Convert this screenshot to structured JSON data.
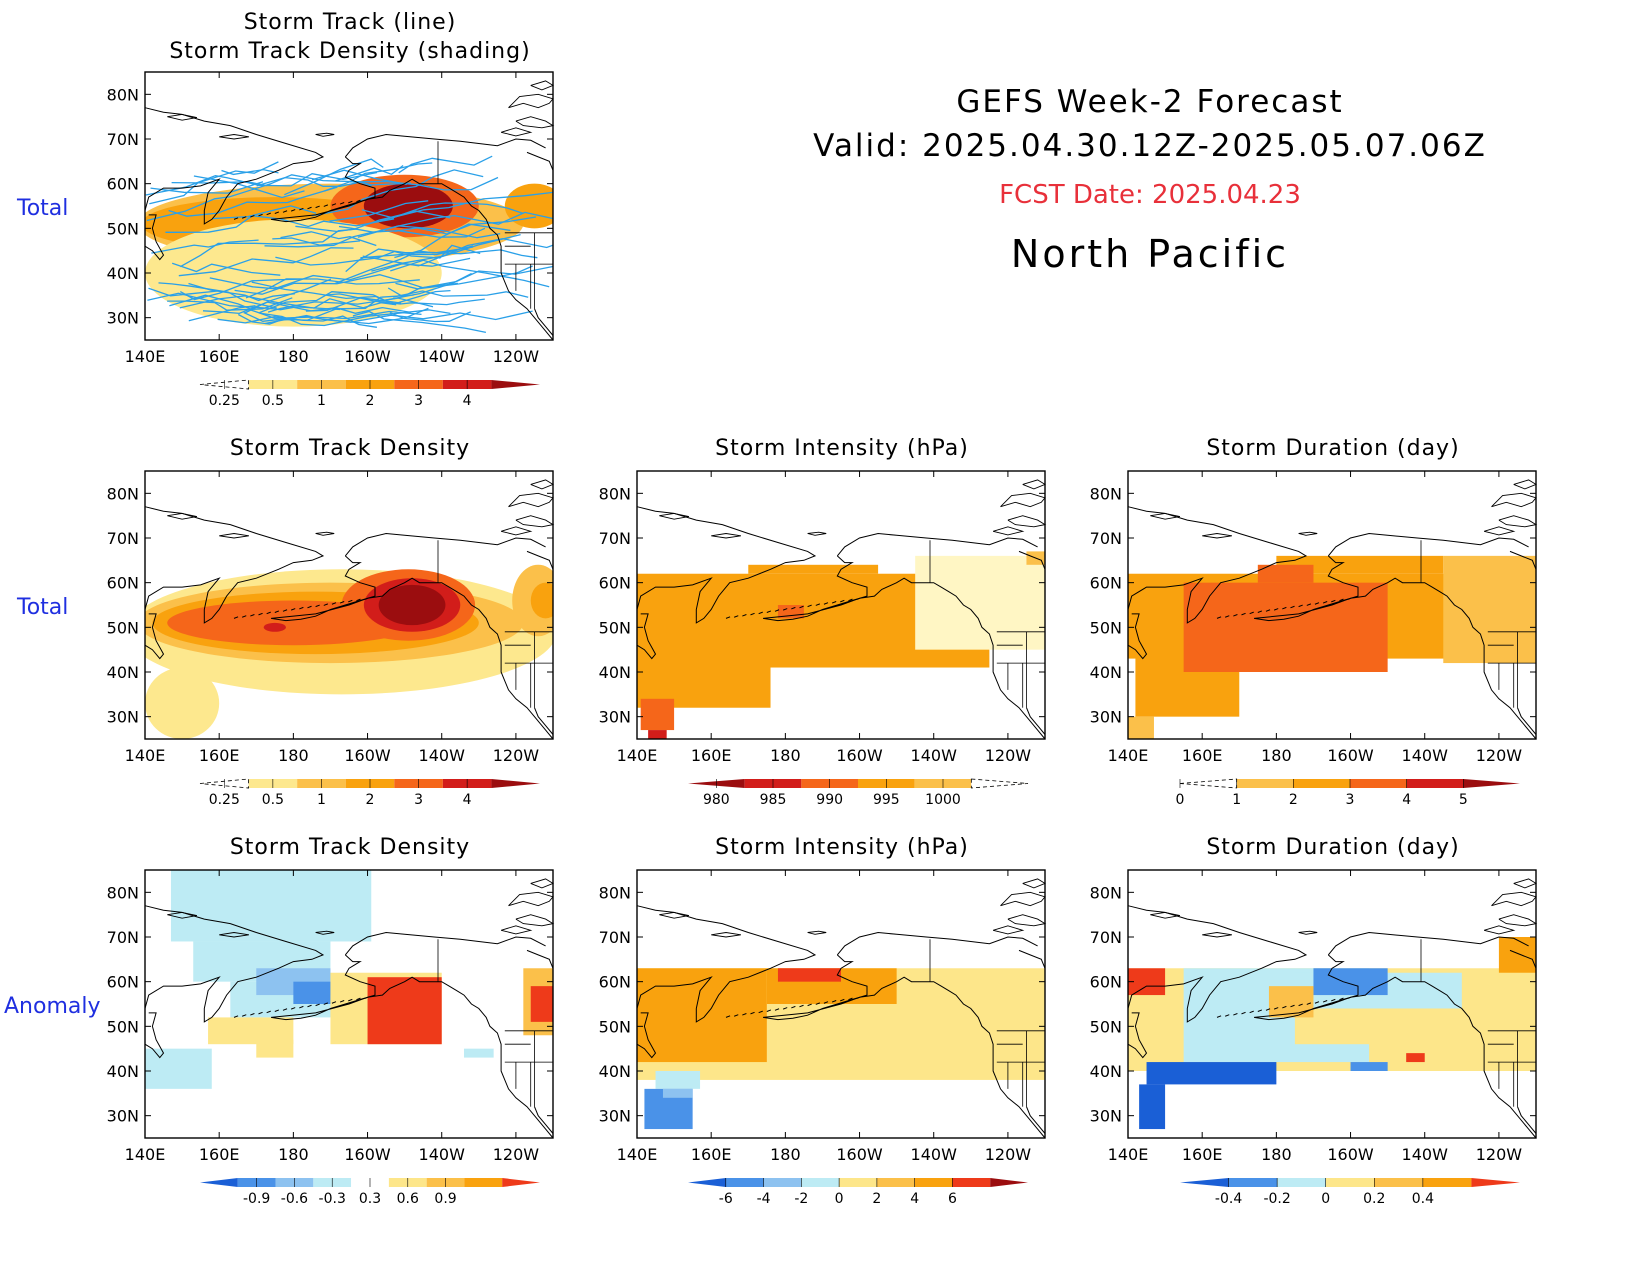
{
  "header": {
    "line1": "GEFS Week-2 Forecast",
    "line2": "Valid: 2025.04.30.12Z-2025.05.07.06Z",
    "fcst": "FCST Date: 2025.04.23",
    "region": "North Pacific",
    "fcst_color": "#e8303a"
  },
  "row_labels": {
    "top": "Total",
    "middle": "Total",
    "bottom": "Anomaly"
  },
  "lat_ticks": [
    "80N",
    "70N",
    "60N",
    "50N",
    "40N",
    "30N"
  ],
  "lon_ticks": [
    "140E",
    "160E",
    "180",
    "160W",
    "140W",
    "120W"
  ],
  "lat_range": [
    25,
    85
  ],
  "lon_range": [
    140,
    250
  ],
  "colorbars": {
    "density": {
      "labels": [
        "0.25",
        "0.5",
        "1",
        "2",
        "3",
        "4"
      ],
      "colors": [
        "#fff6c4",
        "#fde88e",
        "#fbc04a",
        "#f9a20e",
        "#f5661a",
        "#d21d1a",
        "#9b0d0f"
      ],
      "left_dashed": true
    },
    "intensity": {
      "labels": [
        "980",
        "985",
        "990",
        "995",
        "1000"
      ],
      "colors": [
        "#9b0d0f",
        "#d21d1a",
        "#f5661a",
        "#f9a20e",
        "#fbc04a",
        "#fff6c4"
      ],
      "right_dashed": true
    },
    "duration": {
      "labels": [
        "0",
        "1",
        "2",
        "3",
        "4",
        "5"
      ],
      "colors": [
        "#fff6c4",
        "#fbc04a",
        "#f9a20e",
        "#f5661a",
        "#d21d1a",
        "#9b0d0f"
      ],
      "left_dashed": true
    },
    "anom_density": {
      "labels": [
        "-0.9",
        "-0.6",
        "-0.3",
        "0.3",
        "0.6",
        "0.9"
      ],
      "colors": [
        "#1a5fd6",
        "#4a92e8",
        "#8dc2f0",
        "#bdebf4",
        "#ffffff",
        "#fde68a",
        "#fbc04a",
        "#f9a20e",
        "#ee3a1a"
      ]
    },
    "anom_intensity": {
      "labels": [
        "-6",
        "-4",
        "-2",
        "0",
        "2",
        "4",
        "6"
      ],
      "colors": [
        "#1a5fd6",
        "#4a92e8",
        "#8dc2f0",
        "#bdebf4",
        "#fde68a",
        "#fbc04a",
        "#f9a20e",
        "#ee3a1a",
        "#9b0d0f"
      ]
    },
    "anom_duration": {
      "labels": [
        "-0.4",
        "-0.2",
        "0",
        "0.2",
        "0.4"
      ],
      "colors": [
        "#1a5fd6",
        "#4a92e8",
        "#bdebf4",
        "#fde68a",
        "#fbc04a",
        "#f9a20e",
        "#ee3a1a"
      ]
    }
  },
  "chart_data": [
    {
      "id": "track",
      "type": "heatmap",
      "title_lines": [
        "Storm Track (line)",
        "Storm Track Density (shading)"
      ],
      "xlim": [
        140,
        250
      ],
      "ylim": [
        25,
        85
      ],
      "colorbar": "density",
      "blobs": [
        {
          "lon": 190,
          "lat": 51,
          "rlon": 52,
          "rlat": 9,
          "level": 2
        },
        {
          "lon": 175,
          "lat": 51,
          "rlon": 36,
          "rlat": 6,
          "level": 3
        },
        {
          "lon": 210,
          "lat": 55,
          "rlon": 20,
          "rlat": 7,
          "level": 4
        },
        {
          "lon": 211,
          "lat": 55,
          "rlon": 12,
          "rlat": 5,
          "level": 6
        },
        {
          "lon": 245,
          "lat": 55,
          "rlon": 8,
          "rlat": 5,
          "level": 3
        },
        {
          "lon": 180,
          "lat": 40,
          "rlon": 40,
          "rlat": 12,
          "level": 1
        }
      ],
      "tracks": true
    },
    {
      "id": "density",
      "type": "heatmap",
      "title": "Storm Track Density",
      "xlim": [
        140,
        250
      ],
      "ylim": [
        25,
        85
      ],
      "colorbar": "density",
      "blobs": [
        {
          "lon": 193,
          "lat": 49,
          "rlon": 58,
          "rlat": 14,
          "level": 1
        },
        {
          "lon": 150,
          "lat": 33,
          "rlon": 10,
          "rlat": 8,
          "level": 1
        },
        {
          "lon": 190,
          "lat": 51,
          "rlon": 52,
          "rlat": 9,
          "level": 2
        },
        {
          "lon": 186,
          "lat": 51,
          "rlon": 44,
          "rlat": 7,
          "level": 3
        },
        {
          "lon": 180,
          "lat": 51,
          "rlon": 34,
          "rlat": 5,
          "level": 4
        },
        {
          "lon": 211,
          "lat": 55,
          "rlon": 18,
          "rlat": 8,
          "level": 4
        },
        {
          "lon": 212,
          "lat": 55,
          "rlon": 13,
          "rlat": 6,
          "level": 5
        },
        {
          "lon": 212,
          "lat": 55,
          "rlon": 9,
          "rlat": 4.5,
          "level": 6
        },
        {
          "lon": 175,
          "lat": 50,
          "rlon": 3,
          "rlat": 1,
          "level": 5
        },
        {
          "lon": 246,
          "lat": 56,
          "rlon": 7,
          "rlat": 8,
          "level": 2
        },
        {
          "lon": 248,
          "lat": 56,
          "rlon": 4,
          "rlat": 4,
          "level": 3
        }
      ]
    },
    {
      "id": "intensity",
      "type": "heatmap",
      "title": "Storm Intensity (hPa)",
      "xlim": [
        140,
        250
      ],
      "ylim": [
        25,
        85
      ],
      "colorbar": "intensity",
      "cells": [
        {
          "lon0": 140,
          "lon1": 235,
          "lat0": 41,
          "lat1": 62,
          "level": 3
        },
        {
          "lon0": 140,
          "lon1": 176,
          "lat0": 32,
          "lat1": 45,
          "level": 3
        },
        {
          "lon0": 170,
          "lon1": 205,
          "lat0": 62,
          "lat1": 64,
          "level": 3
        },
        {
          "lon0": 215,
          "lon1": 250,
          "lat0": 45,
          "lat1": 66,
          "level": 5
        },
        {
          "lon0": 178,
          "lon1": 185,
          "lat0": 52,
          "lat1": 55,
          "level": 2
        },
        {
          "lon0": 141,
          "lon1": 150,
          "lat0": 27,
          "lat1": 34,
          "level": 2
        },
        {
          "lon0": 143,
          "lon1": 148,
          "lat0": 25,
          "lat1": 27,
          "level": 1
        },
        {
          "lon0": 245,
          "lon1": 250,
          "lat0": 64,
          "lat1": 67,
          "level": 4
        }
      ]
    },
    {
      "id": "duration",
      "type": "heatmap",
      "title": "Storm Duration (day)",
      "xlim": [
        140,
        250
      ],
      "ylim": [
        25,
        85
      ],
      "colorbar": "duration",
      "cells": [
        {
          "lon0": 140,
          "lon1": 250,
          "lat0": 43,
          "lat1": 62,
          "level": 2
        },
        {
          "lon0": 142,
          "lon1": 170,
          "lat0": 30,
          "lat1": 45,
          "level": 2
        },
        {
          "lon0": 180,
          "lon1": 225,
          "lat0": 62,
          "lat1": 66,
          "level": 2
        },
        {
          "lon0": 155,
          "lon1": 210,
          "lat0": 40,
          "lat1": 60,
          "level": 3
        },
        {
          "lon0": 175,
          "lon1": 190,
          "lat0": 60,
          "lat1": 64,
          "level": 3
        },
        {
          "lon0": 225,
          "lon1": 250,
          "lat0": 42,
          "lat1": 66,
          "level": 1
        },
        {
          "lon0": 140,
          "lon1": 147,
          "lat0": 25,
          "lat1": 30,
          "level": 1
        }
      ]
    },
    {
      "id": "anom_density",
      "type": "heatmap",
      "title": "Storm Track Density",
      "xlim": [
        140,
        250
      ],
      "ylim": [
        25,
        85
      ],
      "colorbar": "anom_density",
      "cells": [
        {
          "lon0": 147,
          "lon1": 201,
          "lat0": 69,
          "lat1": 85,
          "level": 3
        },
        {
          "lon0": 153,
          "lon1": 190,
          "lat0": 60,
          "lat1": 69,
          "level": 3
        },
        {
          "lon0": 163,
          "lon1": 190,
          "lat0": 52,
          "lat1": 60,
          "level": 3
        },
        {
          "lon0": 140,
          "lon1": 158,
          "lat0": 36,
          "lat1": 45,
          "level": 3
        },
        {
          "lon0": 170,
          "lon1": 190,
          "lat0": 57,
          "lat1": 63,
          "level": 2
        },
        {
          "lon0": 180,
          "lon1": 190,
          "lat0": 55,
          "lat1": 60,
          "level": 1
        },
        {
          "lon0": 157,
          "lon1": 180,
          "lat0": 46,
          "lat1": 52,
          "level": 5
        },
        {
          "lon0": 170,
          "lon1": 180,
          "lat0": 43,
          "lat1": 47,
          "level": 5
        },
        {
          "lon0": 190,
          "lon1": 220,
          "lat0": 46,
          "lat1": 62,
          "level": 5
        },
        {
          "lon0": 200,
          "lon1": 220,
          "lat0": 46,
          "lat1": 61,
          "level": 8
        },
        {
          "lon0": 242,
          "lon1": 250,
          "lat0": 48,
          "lat1": 63,
          "level": 6
        },
        {
          "lon0": 244,
          "lon1": 250,
          "lat0": 51,
          "lat1": 59,
          "level": 8
        },
        {
          "lon0": 226,
          "lon1": 234,
          "lat0": 43,
          "lat1": 45,
          "level": 3
        }
      ]
    },
    {
      "id": "anom_intensity",
      "type": "heatmap",
      "title": "Storm Intensity (hPa)",
      "xlim": [
        140,
        250
      ],
      "ylim": [
        25,
        85
      ],
      "colorbar": "anom_intensity",
      "cells": [
        {
          "lon0": 140,
          "lon1": 250,
          "lat0": 38,
          "lat1": 63,
          "level": 4
        },
        {
          "lon0": 140,
          "lon1": 175,
          "lat0": 42,
          "lat1": 63,
          "level": 6
        },
        {
          "lon0": 175,
          "lon1": 210,
          "lat0": 55,
          "lat1": 63,
          "level": 6
        },
        {
          "lon0": 178,
          "lon1": 195,
          "lat0": 60,
          "lat1": 63,
          "level": 7
        },
        {
          "lon0": 145,
          "lon1": 157,
          "lat0": 36,
          "lat1": 40,
          "level": 3
        },
        {
          "lon0": 142,
          "lon1": 155,
          "lat0": 27,
          "lat1": 36,
          "level": 1
        },
        {
          "lon0": 147,
          "lon1": 155,
          "lat0": 34,
          "lat1": 36,
          "level": 2
        }
      ]
    },
    {
      "id": "anom_duration",
      "type": "heatmap",
      "title": "Storm Duration (day)",
      "xlim": [
        140,
        250
      ],
      "ylim": [
        25,
        85
      ],
      "colorbar": "anom_duration",
      "cells": [
        {
          "lon0": 140,
          "lon1": 250,
          "lat0": 40,
          "lat1": 63,
          "level": 3
        },
        {
          "lon0": 155,
          "lon1": 205,
          "lat0": 42,
          "lat1": 63,
          "level": 2
        },
        {
          "lon0": 185,
          "lon1": 240,
          "lat0": 46,
          "lat1": 54,
          "level": 3
        },
        {
          "lon0": 185,
          "lon1": 230,
          "lat0": 54,
          "lat1": 62,
          "level": 2
        },
        {
          "lon0": 190,
          "lon1": 210,
          "lat0": 57,
          "lat1": 63,
          "level": 1
        },
        {
          "lon0": 140,
          "lon1": 150,
          "lat0": 57,
          "lat1": 63,
          "level": 6
        },
        {
          "lon0": 178,
          "lon1": 190,
          "lat0": 52,
          "lat1": 59,
          "level": 4
        },
        {
          "lon0": 145,
          "lon1": 180,
          "lat0": 37,
          "lat1": 42,
          "level": 0
        },
        {
          "lon0": 143,
          "lon1": 150,
          "lat0": 27,
          "lat1": 37,
          "level": 0
        },
        {
          "lon0": 200,
          "lon1": 210,
          "lat0": 40,
          "lat1": 42,
          "level": 1
        },
        {
          "lon0": 240,
          "lon1": 250,
          "lat0": 62,
          "lat1": 70,
          "level": 5
        },
        {
          "lon0": 215,
          "lon1": 220,
          "lat0": 42,
          "lat1": 44,
          "level": 6
        }
      ]
    }
  ]
}
